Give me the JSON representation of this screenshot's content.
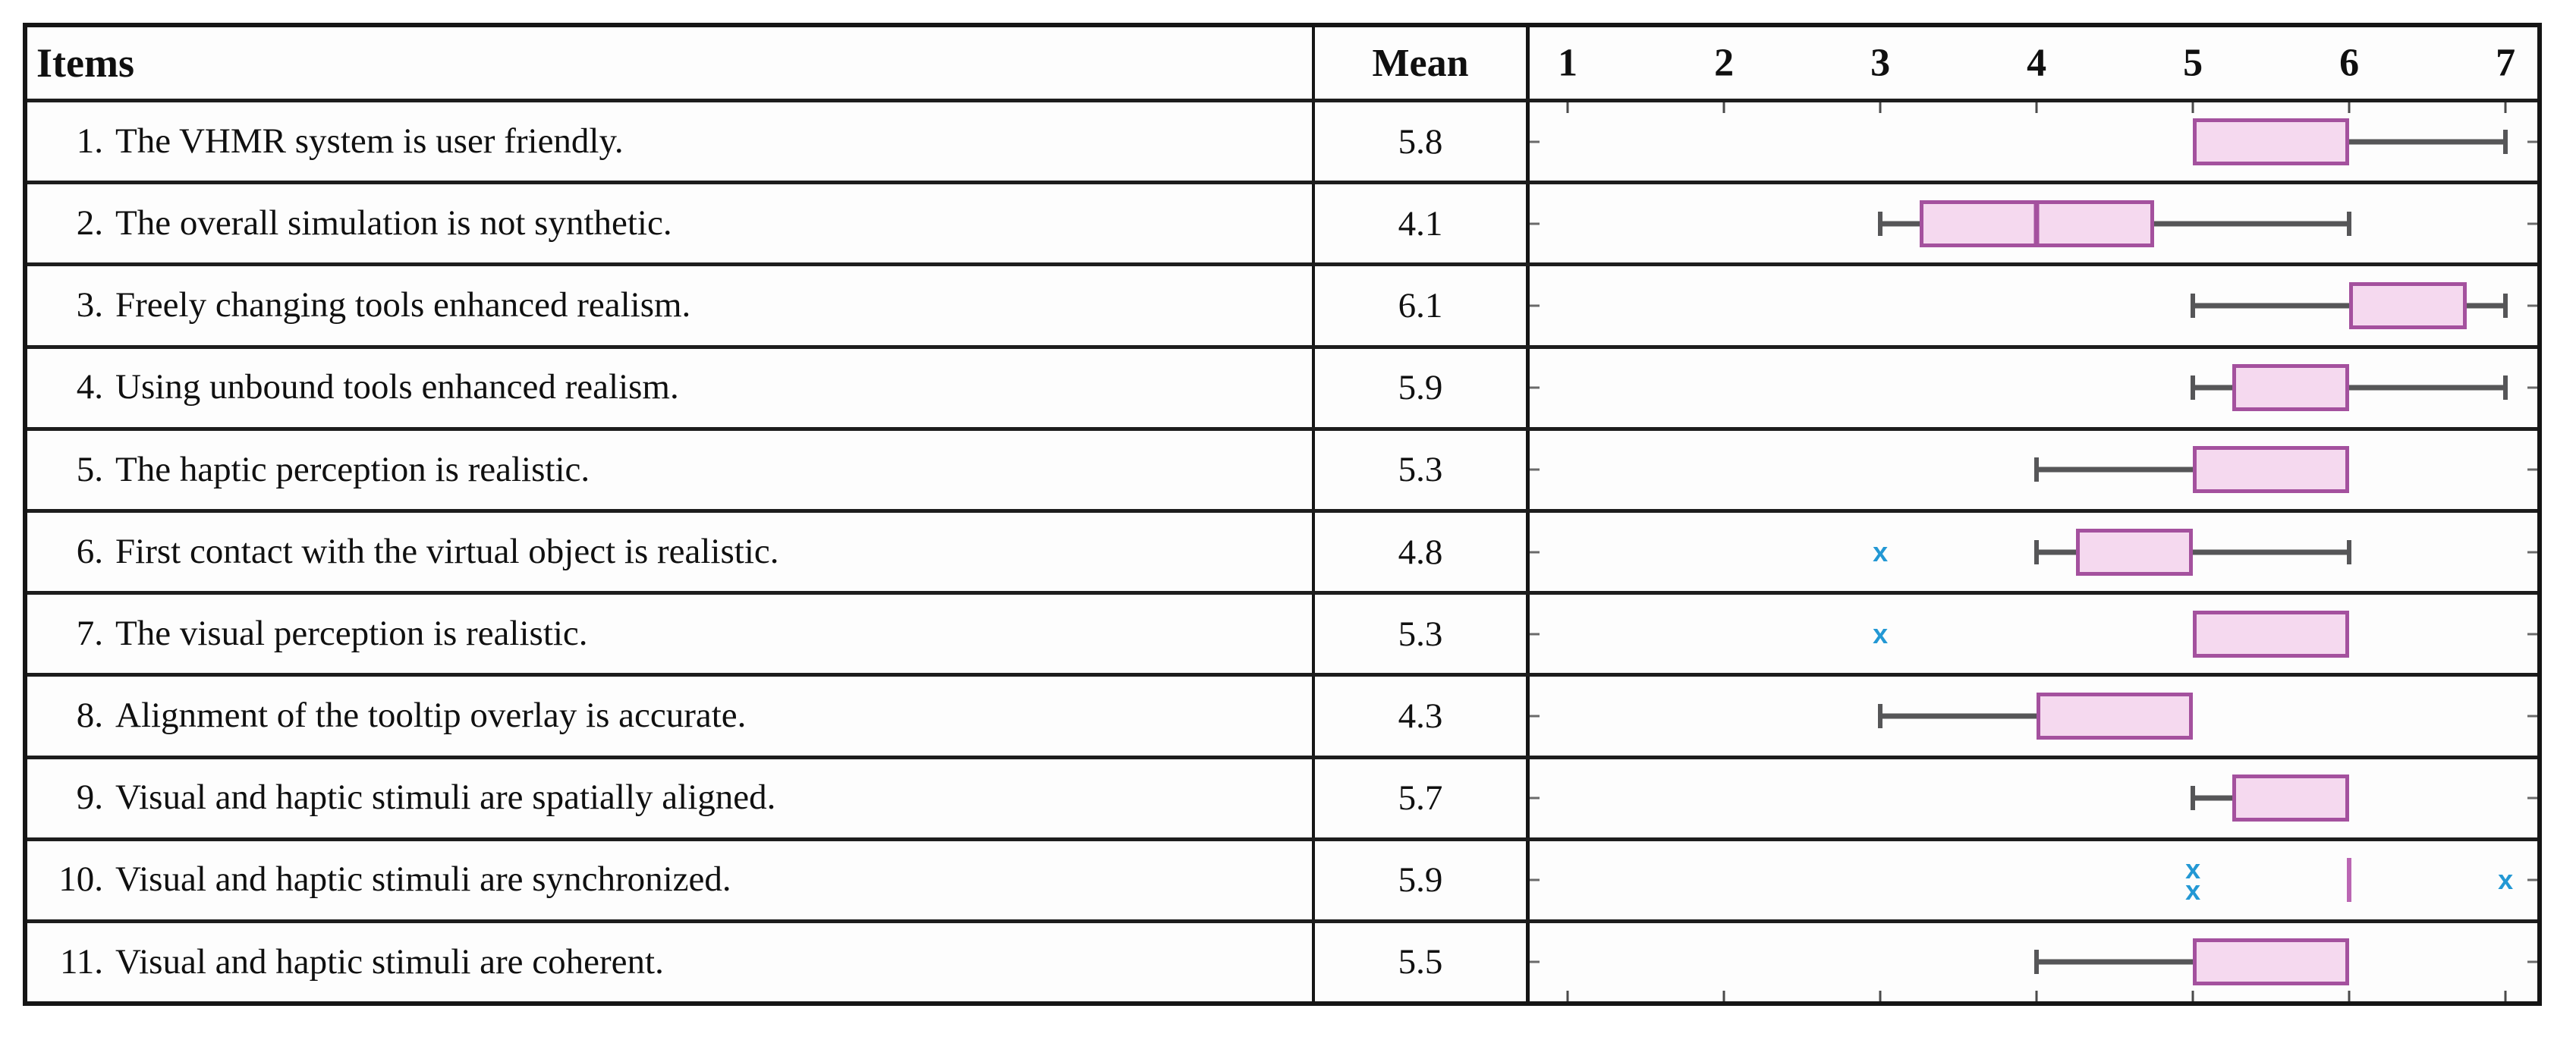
{
  "figure": {
    "items_header": "Items",
    "mean_header": "Mean",
    "scale_min_label": "1",
    "scale_max_label": "7"
  },
  "colors": {
    "box_border": "#a4519e",
    "box_fill": "#f5d9ef",
    "whisker": "#565658",
    "outlier": "#2398d4",
    "median_lone": "#bb66b3",
    "grid": "#1d1d1d"
  },
  "chart_data": {
    "type": "boxplot",
    "orientation": "horizontal",
    "title": "",
    "xlabel": "",
    "ylabel": "",
    "axis": {
      "min": 1,
      "max": 7,
      "ticks": [
        1,
        2,
        3,
        4,
        5,
        6,
        7
      ]
    },
    "legend": null,
    "rows": [
      {
        "num": "1.",
        "label": "The VHMR system is user friendly.",
        "mean": "5.8",
        "box": {
          "q1": 5,
          "q3": 6,
          "median": null,
          "whisker_low": null,
          "whisker_high": 7
        },
        "outliers": []
      },
      {
        "num": "2.",
        "label": "The overall simulation is not synthetic.",
        "mean": "4.1",
        "box": {
          "q1": 3.25,
          "q3": 4.75,
          "median": 4,
          "whisker_low": 3,
          "whisker_high": 6
        },
        "outliers": []
      },
      {
        "num": "3.",
        "label": "Freely changing tools enhanced realism.",
        "mean": "6.1",
        "box": {
          "q1": 6,
          "q3": 6.75,
          "median": null,
          "whisker_low": 5,
          "whisker_high": 7
        },
        "outliers": []
      },
      {
        "num": "4.",
        "label": "Using unbound tools enhanced realism.",
        "mean": "5.9",
        "box": {
          "q1": 5.25,
          "q3": 6,
          "median": null,
          "whisker_low": 5,
          "whisker_high": 7
        },
        "outliers": []
      },
      {
        "num": "5.",
        "label": "The haptic perception is realistic.",
        "mean": "5.3",
        "box": {
          "q1": 5,
          "q3": 6,
          "median": null,
          "whisker_low": 4,
          "whisker_high": null
        },
        "outliers": []
      },
      {
        "num": "6.",
        "label": "First contact with the virtual object is realistic.",
        "mean": "4.8",
        "box": {
          "q1": 4.25,
          "q3": 5,
          "median": null,
          "whisker_low": 4,
          "whisker_high": 6
        },
        "outliers": [
          3
        ]
      },
      {
        "num": "7.",
        "label": "The visual perception is realistic.",
        "mean": "5.3",
        "box": {
          "q1": 5,
          "q3": 6,
          "median": null,
          "whisker_low": null,
          "whisker_high": null
        },
        "outliers": [
          3
        ]
      },
      {
        "num": "8.",
        "label": "Alignment of the tooltip overlay is accurate.",
        "mean": "4.3",
        "box": {
          "q1": 4,
          "q3": 5,
          "median": null,
          "whisker_low": 3,
          "whisker_high": null
        },
        "outliers": []
      },
      {
        "num": "9.",
        "label": "Visual and haptic stimuli are spatially aligned.",
        "mean": "5.7",
        "box": {
          "q1": 5.25,
          "q3": 6,
          "median": null,
          "whisker_low": 5,
          "whisker_high": null
        },
        "outliers": []
      },
      {
        "num": "10.",
        "label": "Visual and haptic stimuli are synchronized.",
        "mean": "5.9",
        "box": {
          "q1": null,
          "q3": null,
          "median": 6,
          "whisker_low": null,
          "whisker_high": null
        },
        "outliers": [
          5,
          5,
          7
        ]
      },
      {
        "num": "11.",
        "label": "Visual and haptic stimuli are coherent.",
        "mean": "5.5",
        "box": {
          "q1": 5,
          "q3": 6,
          "median": null,
          "whisker_low": 4,
          "whisker_high": null
        },
        "outliers": []
      }
    ]
  }
}
